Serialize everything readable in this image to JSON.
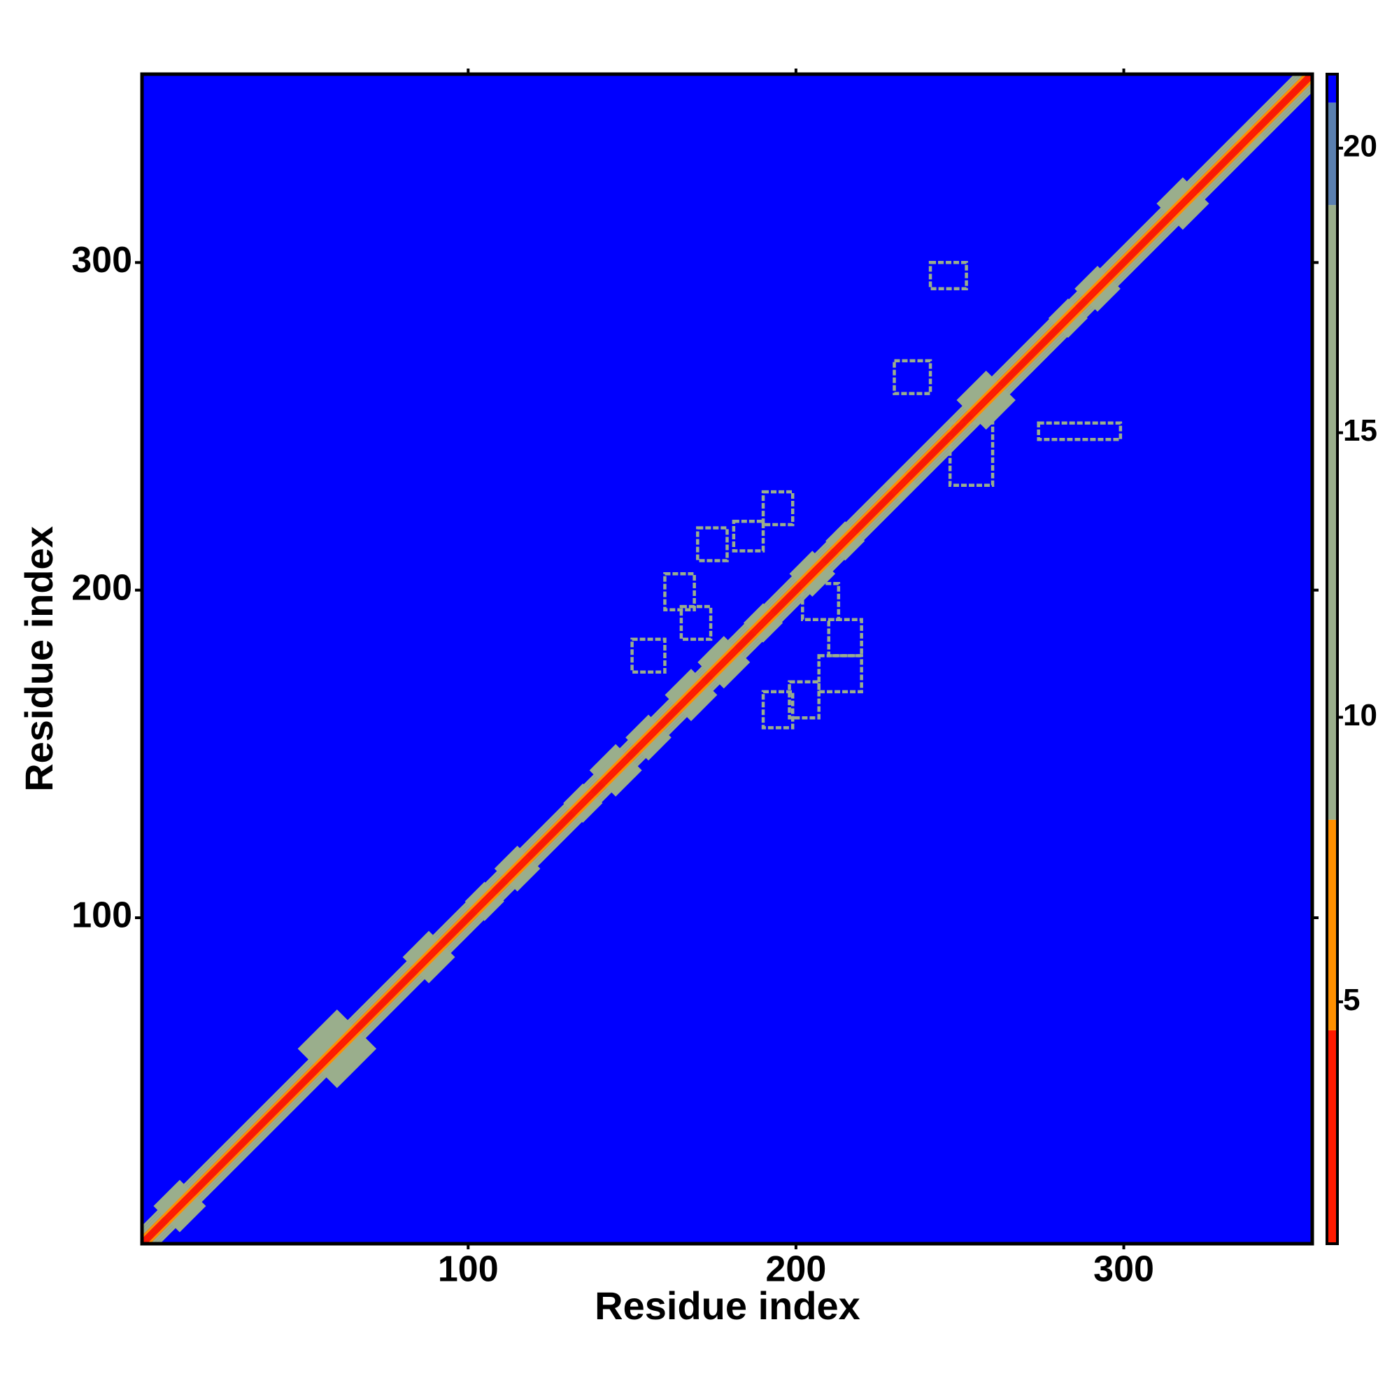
{
  "chart_data": {
    "type": "heatmap",
    "xlabel": "Residue index",
    "ylabel": "Residue index",
    "xlim": [
      0.5,
      357.5
    ],
    "ylim": [
      0.5,
      357.5
    ],
    "xticks": [
      100,
      200,
      300
    ],
    "yticks": [
      100,
      200,
      300
    ],
    "background": 21,
    "diagonal": {
      "offsets": [
        0,
        1,
        2,
        3,
        4,
        5
      ],
      "values": [
        1,
        3.8,
        6,
        10,
        13,
        16
      ]
    },
    "clusters": {
      "centers": [
        12,
        60,
        88,
        105,
        115,
        135,
        145,
        155,
        168,
        178,
        190,
        205,
        215,
        232,
        258,
        283,
        292,
        318,
        338
      ],
      "widths": [
        8,
        12,
        8,
        6,
        7,
        6,
        8,
        7,
        8,
        8,
        6,
        7,
        6,
        5,
        9,
        6,
        7,
        8,
        5
      ],
      "values": [
        13,
        13,
        13,
        13,
        13,
        13,
        13,
        13,
        13,
        13,
        13,
        13,
        13,
        13,
        13,
        13,
        13,
        13,
        13
      ]
    },
    "patches": [
      {
        "x": [
          160,
          169
        ],
        "y": [
          194,
          205
        ],
        "value": 14
      },
      {
        "x": [
          170,
          179
        ],
        "y": [
          209,
          219
        ],
        "value": 14
      },
      {
        "x": [
          181,
          190
        ],
        "y": [
          212,
          221
        ],
        "value": 14
      },
      {
        "x": [
          165,
          174
        ],
        "y": [
          185,
          195
        ],
        "value": 14
      },
      {
        "x": [
          150,
          160
        ],
        "y": [
          175,
          185
        ],
        "value": 14
      },
      {
        "x": [
          190,
          199
        ],
        "y": [
          220,
          230
        ],
        "value": 14
      },
      {
        "x": [
          202,
          213
        ],
        "y": [
          191,
          202
        ],
        "value": 14
      },
      {
        "x": [
          210,
          220
        ],
        "y": [
          180,
          191
        ],
        "value": 14
      },
      {
        "x": [
          198,
          207
        ],
        "y": [
          161,
          172
        ],
        "value": 14
      },
      {
        "x": [
          190,
          199
        ],
        "y": [
          158,
          169
        ],
        "value": 14
      },
      {
        "x": [
          207,
          220
        ],
        "y": [
          169,
          180
        ],
        "value": 14
      },
      {
        "x": [
          230,
          241
        ],
        "y": [
          260,
          270
        ],
        "value": 14
      },
      {
        "x": [
          241,
          252
        ],
        "y": [
          292,
          300
        ],
        "value": 14
      },
      {
        "x": [
          274,
          299
        ],
        "y": [
          246,
          251
        ],
        "value": 14
      },
      {
        "x": [
          247,
          260
        ],
        "y": [
          232,
          251
        ],
        "value": 14
      }
    ],
    "colorbar": {
      "levels": [
        0.75,
        4.5,
        8.2,
        19,
        20.8,
        21.3
      ],
      "colors": [
        "#ff1a00",
        "#ff9000",
        "#9aae8c",
        "#5a7fb0",
        "#0000ff"
      ],
      "ticks": [
        5,
        10,
        15,
        20
      ]
    }
  }
}
